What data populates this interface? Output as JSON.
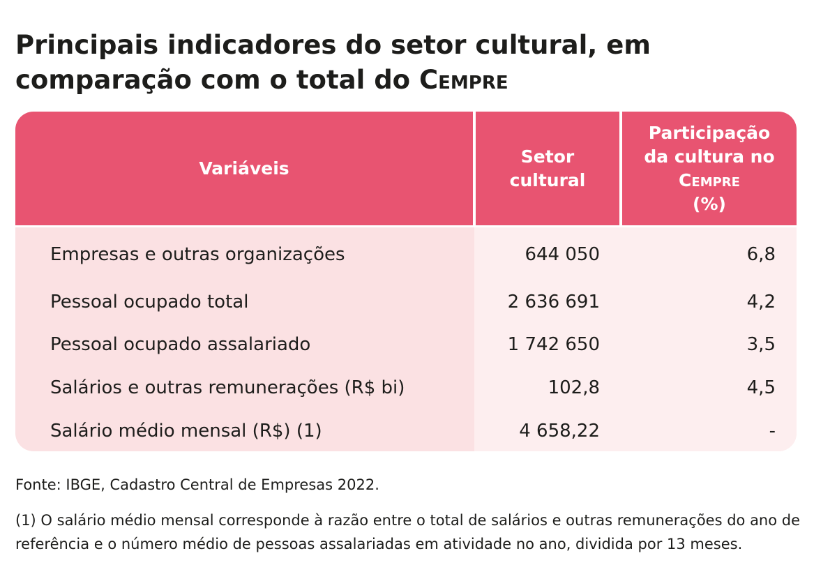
{
  "title": {
    "main": "Principais indicadores do setor cultural, em comparação com o total do ",
    "brand": "Cempre"
  },
  "table": {
    "header": {
      "col1": "Variáveis",
      "col2_line1": "Setor",
      "col2_line2": "cultural",
      "col3_line1": "Participação",
      "col3_line2": "da cultura no",
      "col3_brand": "Cempre",
      "col3_suffix": " (%)"
    },
    "rows": [
      {
        "variable": "Empresas e outras organizações",
        "value": "644 050",
        "share": "6,8"
      },
      {
        "variable": "Pessoal ocupado total",
        "value": "2 636 691",
        "share": "4,2"
      },
      {
        "variable": "Pessoal ocupado assalariado",
        "value": "1 742 650",
        "share": "3,5"
      },
      {
        "variable": "Salários e outras remunerações (R$ bi)",
        "value": "102,8",
        "share": "4,5"
      },
      {
        "variable": "Salário médio mensal (R$) (1)",
        "value": "4 658,22",
        "share": "-"
      }
    ]
  },
  "source": "Fonte: IBGE, Cadastro Central de Empresas 2022.",
  "note": "(1) O salário médio mensal corresponde à razão entre o total de salários e outras remunerações do ano de referência e o número médio de pessoas assalariadas em atividade no ano, dividida por 13 meses.",
  "colors": {
    "header": "#e85471",
    "body": "#fbe1e3",
    "text": "#1d1d1b"
  }
}
